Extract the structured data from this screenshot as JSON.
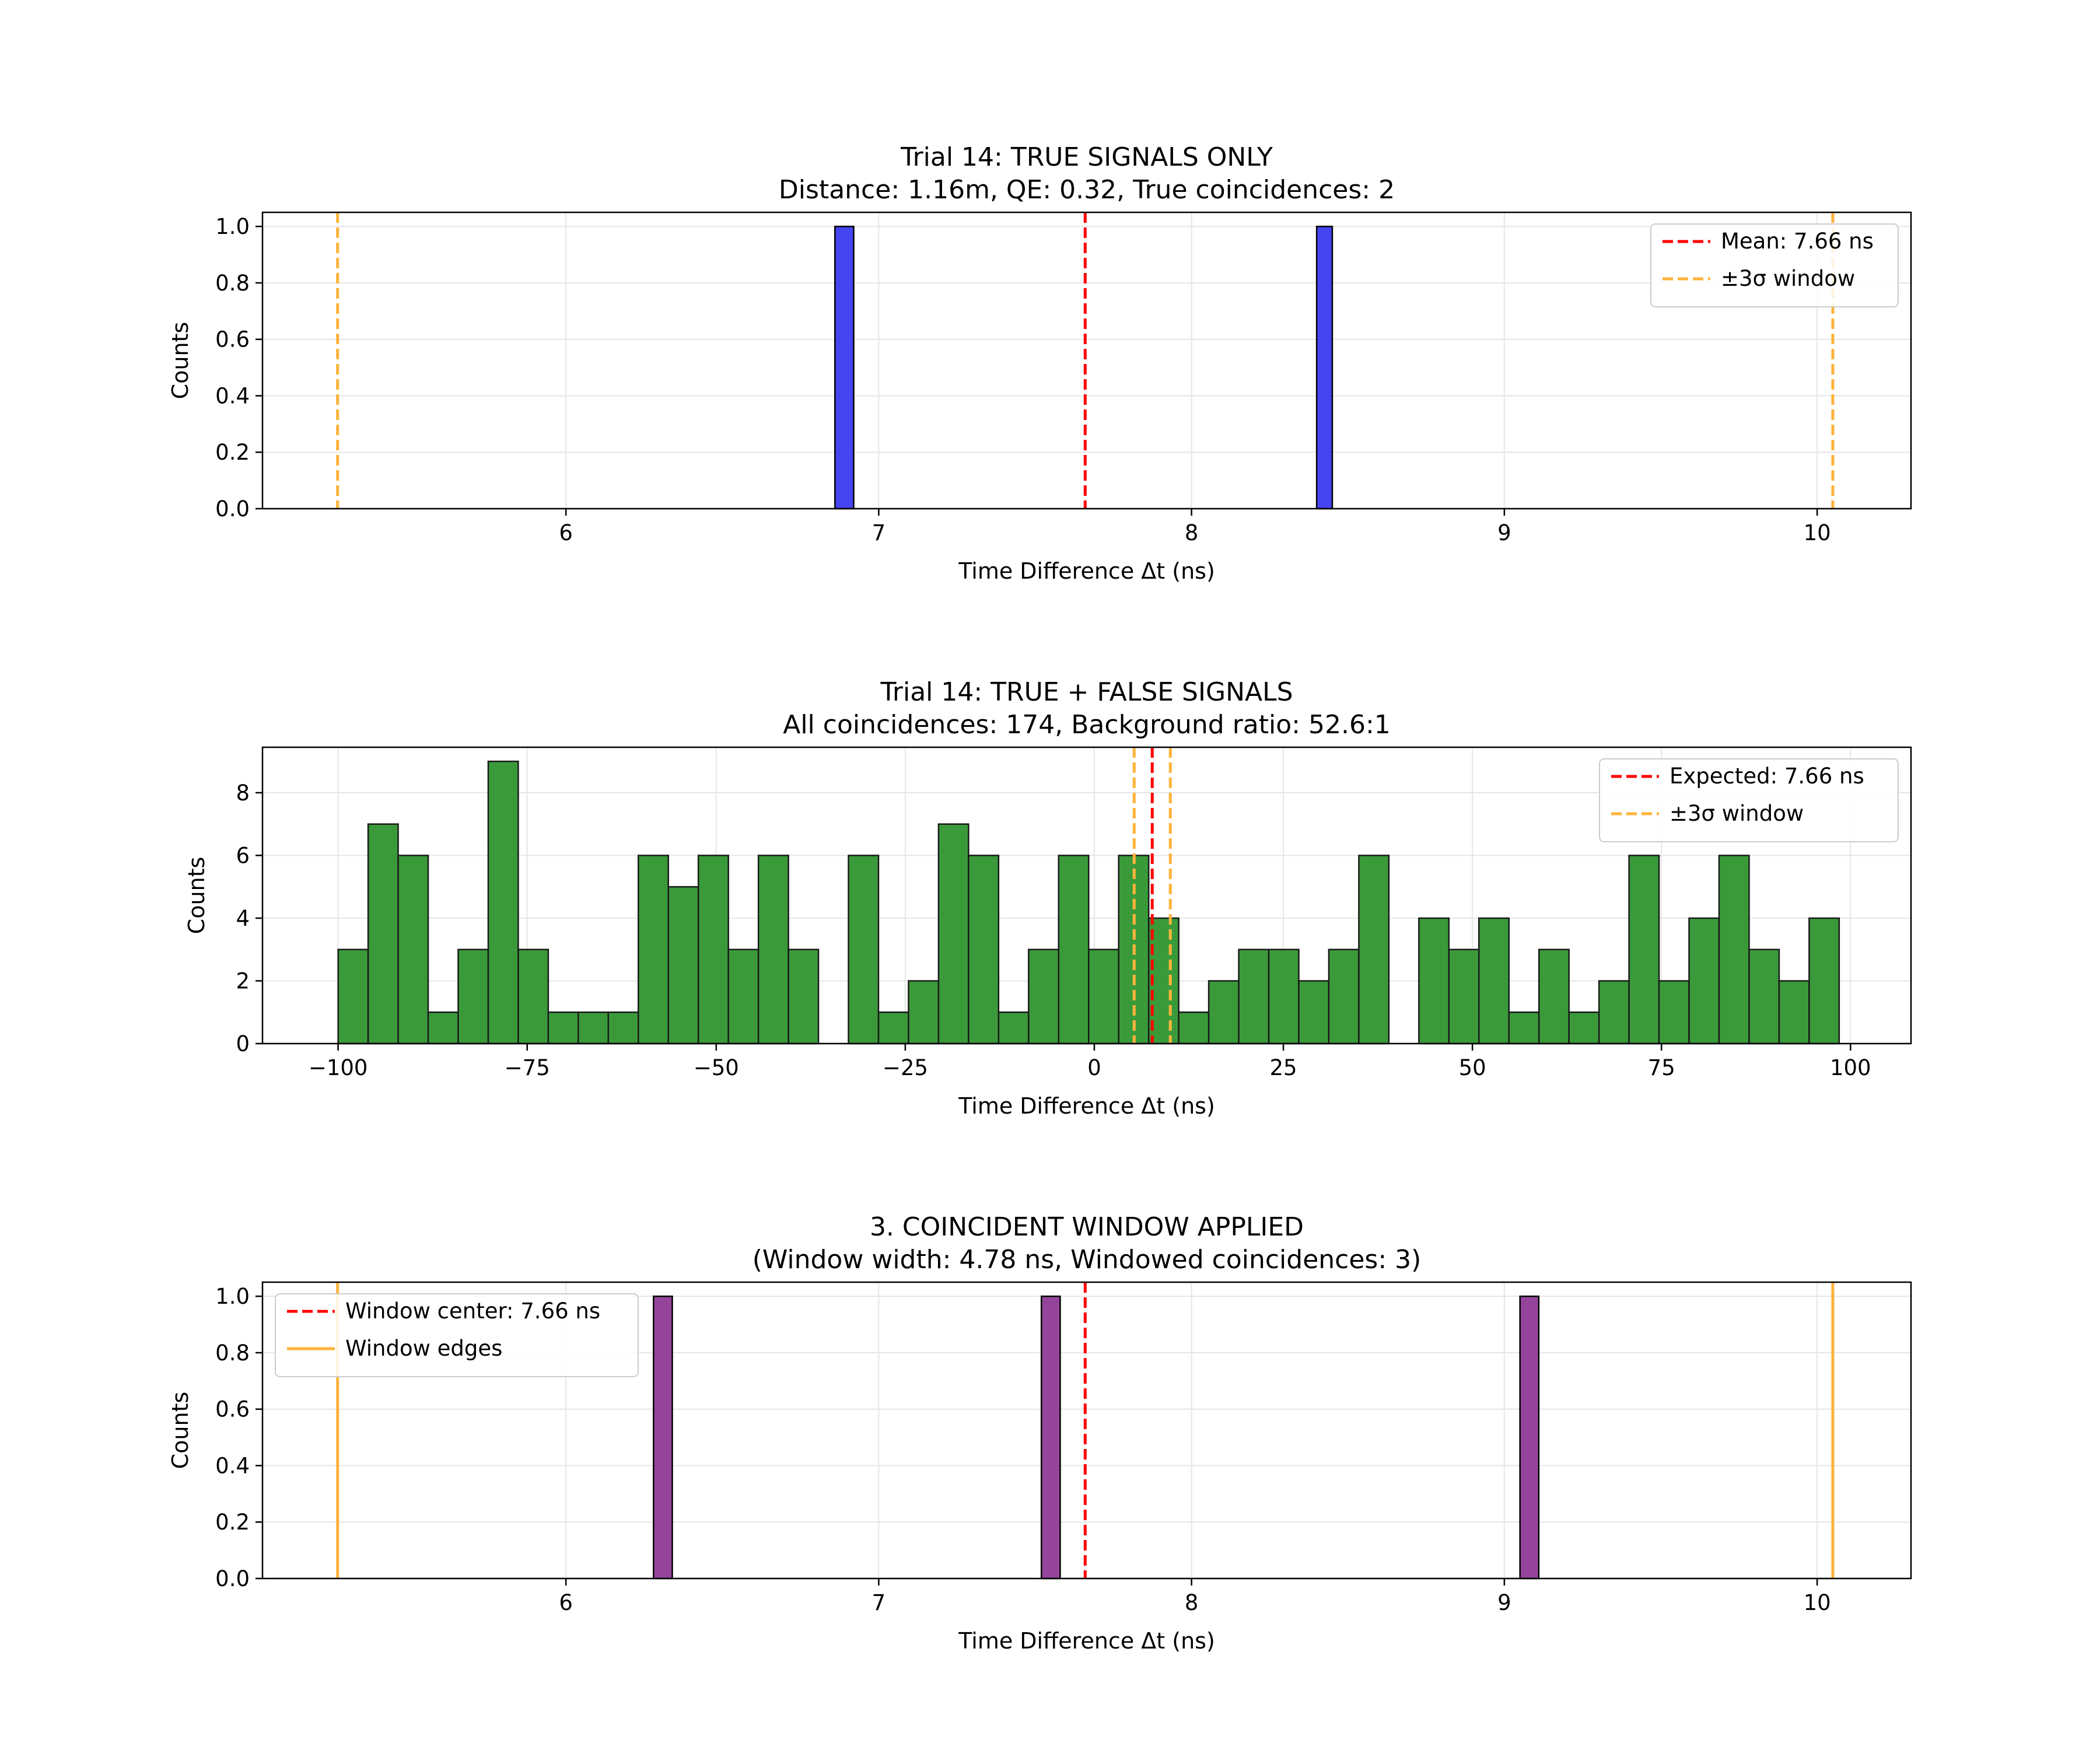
{
  "chart_data": [
    {
      "type": "bar",
      "title": "Trial 14: TRUE SIGNALS ONLY",
      "subtitle": "Distance: 1.16m, QE: 0.32, True coincidences: 2",
      "xlabel": "Time Difference Δt (ns)",
      "ylabel": "Counts",
      "xlim": [
        5.03,
        10.3
      ],
      "ylim": [
        0,
        1.05
      ],
      "xticks": [
        6,
        7,
        8,
        9,
        10
      ],
      "xtick_labels": [
        "6",
        "7",
        "8",
        "9",
        "10"
      ],
      "yticks": [
        0.0,
        0.2,
        0.4,
        0.6,
        0.8,
        1.0
      ],
      "ytick_labels": [
        "0.0",
        "0.2",
        "0.4",
        "0.6",
        "0.8",
        "1.0"
      ],
      "grid": true,
      "legend_position": "top-right",
      "bar_color": "#3b3bf0",
      "bins": [
        {
          "x0": 6.86,
          "x1": 6.92,
          "count": 1
        },
        {
          "x0": 6.92,
          "x1": 8.4,
          "count": 0
        },
        {
          "x0": 8.4,
          "x1": 8.45,
          "count": 1
        }
      ],
      "lines": [
        {
          "x": 7.66,
          "color": "#ff0000",
          "style": "dashed",
          "legend": "Mean: 7.66 ns"
        },
        {
          "x": 5.27,
          "color": "#ffb33a",
          "style": "dashed",
          "legend": "±3σ window"
        },
        {
          "x": 10.05,
          "color": "#ffb33a",
          "style": "dashed",
          "legend": ""
        }
      ]
    },
    {
      "type": "bar",
      "title": "Trial 14: TRUE + FALSE SIGNALS",
      "subtitle": "All coincidences: 174, Background ratio: 52.6:1",
      "xlabel": "Time Difference Δt (ns)",
      "ylabel": "Counts",
      "xlim": [
        -110,
        108
      ],
      "ylim": [
        0,
        9.45
      ],
      "xticks": [
        -100,
        -75,
        -50,
        -25,
        0,
        25,
        50,
        75,
        100
      ],
      "xtick_labels": [
        "−100",
        "−75",
        "−50",
        "−25",
        "0",
        "25",
        "50",
        "75",
        "100"
      ],
      "yticks": [
        0,
        2,
        4,
        6,
        8
      ],
      "ytick_labels": [
        "0",
        "2",
        "4",
        "6",
        "8"
      ],
      "grid": true,
      "legend_position": "top-right",
      "bar_color": "#3a9a3a",
      "bin_start": -100,
      "bin_width": 3.97,
      "counts": [
        3,
        7,
        6,
        1,
        3,
        9,
        3,
        1,
        1,
        1,
        6,
        5,
        6,
        3,
        6,
        3,
        0,
        6,
        1,
        2,
        7,
        6,
        1,
        3,
        6,
        3,
        6,
        4,
        1,
        2,
        3,
        3,
        2,
        3,
        6,
        0,
        4,
        3,
        4,
        1,
        3,
        1,
        2,
        6,
        2,
        4,
        6,
        3,
        2,
        4
      ],
      "lines": [
        {
          "x": 7.66,
          "color": "#ff0000",
          "style": "dashed",
          "legend": "Expected: 7.66 ns"
        },
        {
          "x": 5.27,
          "color": "#ffb33a",
          "style": "dashed",
          "legend": "±3σ window"
        },
        {
          "x": 10.05,
          "color": "#ffb33a",
          "style": "dashed",
          "legend": ""
        }
      ]
    },
    {
      "type": "bar",
      "title": "3. COINCIDENT WINDOW APPLIED",
      "subtitle": "(Window width: 4.78 ns, Windowed coincidences: 3)",
      "xlabel": "Time Difference Δt (ns)",
      "ylabel": "Counts",
      "xlim": [
        5.03,
        10.3
      ],
      "ylim": [
        0,
        1.05
      ],
      "xticks": [
        6,
        7,
        8,
        9,
        10
      ],
      "xtick_labels": [
        "6",
        "7",
        "8",
        "9",
        "10"
      ],
      "yticks": [
        0.0,
        0.2,
        0.4,
        0.6,
        0.8,
        1.0
      ],
      "ytick_labels": [
        "0.0",
        "0.2",
        "0.4",
        "0.6",
        "0.8",
        "1.0"
      ],
      "grid": true,
      "legend_position": "top-left",
      "bar_color": "#8e3b96",
      "bins": [
        {
          "x0": 6.28,
          "x1": 6.34,
          "count": 1
        },
        {
          "x0": 6.34,
          "x1": 7.52,
          "count": 0
        },
        {
          "x0": 7.52,
          "x1": 7.58,
          "count": 1
        },
        {
          "x0": 7.58,
          "x1": 9.05,
          "count": 0
        },
        {
          "x0": 9.05,
          "x1": 9.11,
          "count": 1
        }
      ],
      "lines": [
        {
          "x": 7.66,
          "color": "#ff0000",
          "style": "dashed",
          "legend": "Window center: 7.66 ns"
        },
        {
          "x": 5.27,
          "color": "#ffb33a",
          "style": "solid",
          "legend": "Window edges"
        },
        {
          "x": 10.05,
          "color": "#ffb33a",
          "style": "solid",
          "legend": ""
        }
      ]
    }
  ]
}
